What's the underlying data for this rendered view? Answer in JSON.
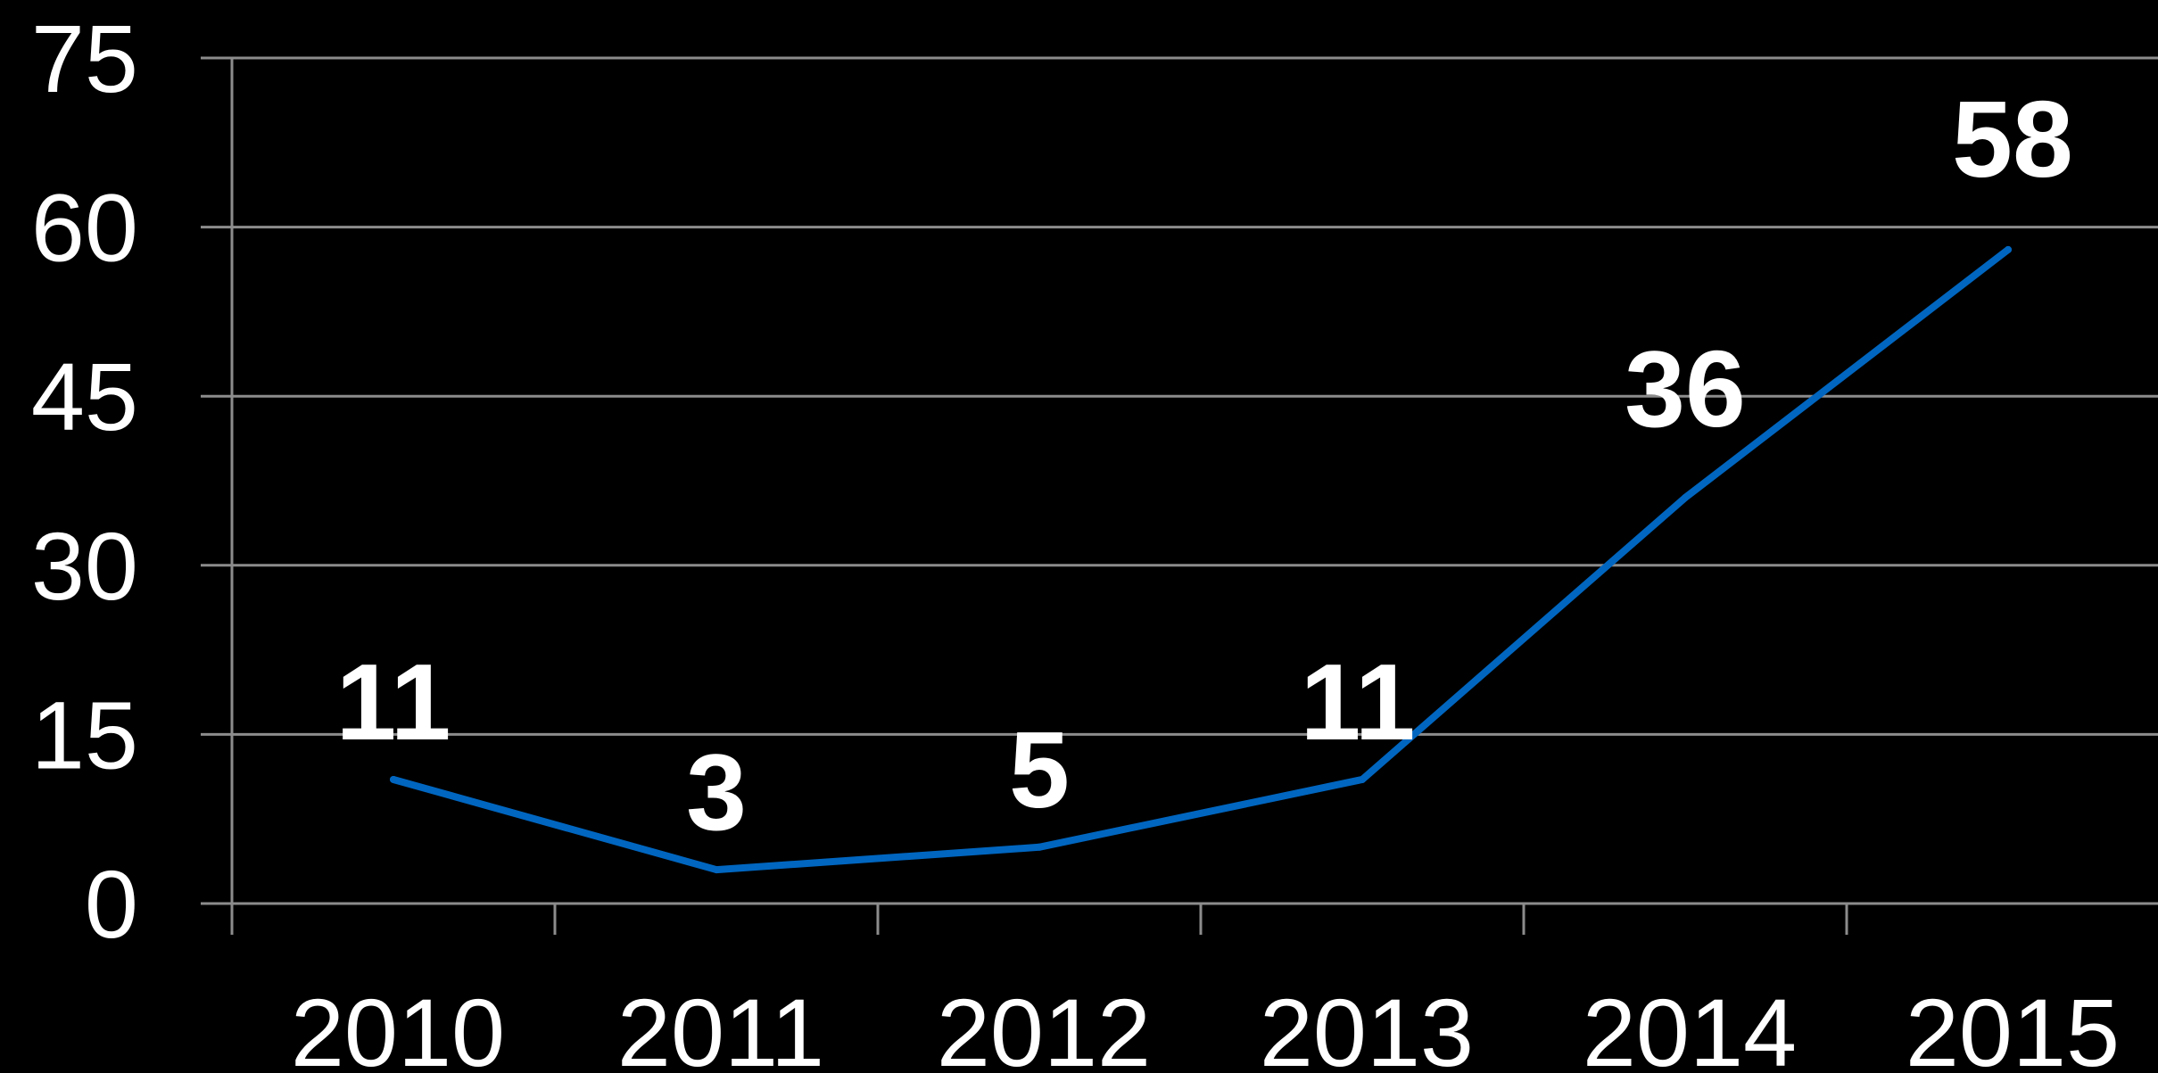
{
  "chart_data": {
    "type": "line",
    "categories": [
      "2010",
      "2011",
      "2012",
      "2013",
      "2014",
      "2015"
    ],
    "series": [
      {
        "values": [
          11,
          3,
          5,
          11,
          36,
          58
        ]
      }
    ],
    "data_labels": [
      "11",
      "3",
      "5",
      "11",
      "36",
      "58"
    ],
    "yticks": [
      "0",
      "15",
      "30",
      "45",
      "60",
      "75"
    ],
    "ylim": [
      0,
      75
    ],
    "title": "",
    "xlabel": "",
    "ylabel": "",
    "grid": true,
    "legend": "none",
    "colors": {
      "background": "#000000",
      "line": "#0066c0",
      "grid": "#8c8c8c",
      "text": "#ffffff"
    }
  }
}
